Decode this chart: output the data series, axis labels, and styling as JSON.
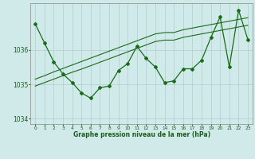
{
  "title": "Graphe pression niveau de la mer (hPa)",
  "bg_color": "#d0eaea",
  "plot_bg_color": "#d0eaea",
  "line_color": "#1a6b1a",
  "grid_color": "#b0cccc",
  "text_color": "#1a5c1a",
  "x_values": [
    0,
    1,
    2,
    3,
    4,
    5,
    6,
    7,
    8,
    9,
    10,
    11,
    12,
    13,
    14,
    15,
    16,
    17,
    18,
    19,
    20,
    21,
    22,
    23
  ],
  "y_main": [
    1036.75,
    1036.2,
    1035.65,
    1035.3,
    1035.05,
    1034.75,
    1034.6,
    1034.9,
    1034.95,
    1035.4,
    1035.6,
    1036.1,
    1035.75,
    1035.5,
    1035.05,
    1035.1,
    1035.45,
    1035.45,
    1035.7,
    1036.35,
    1036.95,
    1035.5,
    1037.15,
    1036.3
  ],
  "y_trend1": [
    1035.15,
    1035.25,
    1035.36,
    1035.46,
    1035.56,
    1035.66,
    1035.76,
    1035.86,
    1035.96,
    1036.06,
    1036.16,
    1036.26,
    1036.36,
    1036.46,
    1036.5,
    1036.5,
    1036.58,
    1036.63,
    1036.68,
    1036.73,
    1036.78,
    1036.83,
    1036.88,
    1036.93
  ],
  "y_trend2": [
    1034.95,
    1035.05,
    1035.15,
    1035.25,
    1035.35,
    1035.44,
    1035.54,
    1035.64,
    1035.74,
    1035.84,
    1035.94,
    1036.04,
    1036.14,
    1036.24,
    1036.28,
    1036.28,
    1036.36,
    1036.41,
    1036.46,
    1036.51,
    1036.56,
    1036.61,
    1036.66,
    1036.71
  ],
  "ylim": [
    1033.85,
    1037.35
  ],
  "yticks": [
    1034,
    1035,
    1036
  ],
  "xlim": [
    -0.5,
    23.5
  ],
  "xticks": [
    0,
    1,
    2,
    3,
    4,
    5,
    6,
    7,
    8,
    9,
    10,
    11,
    12,
    13,
    14,
    15,
    16,
    17,
    18,
    19,
    20,
    21,
    22,
    23
  ]
}
